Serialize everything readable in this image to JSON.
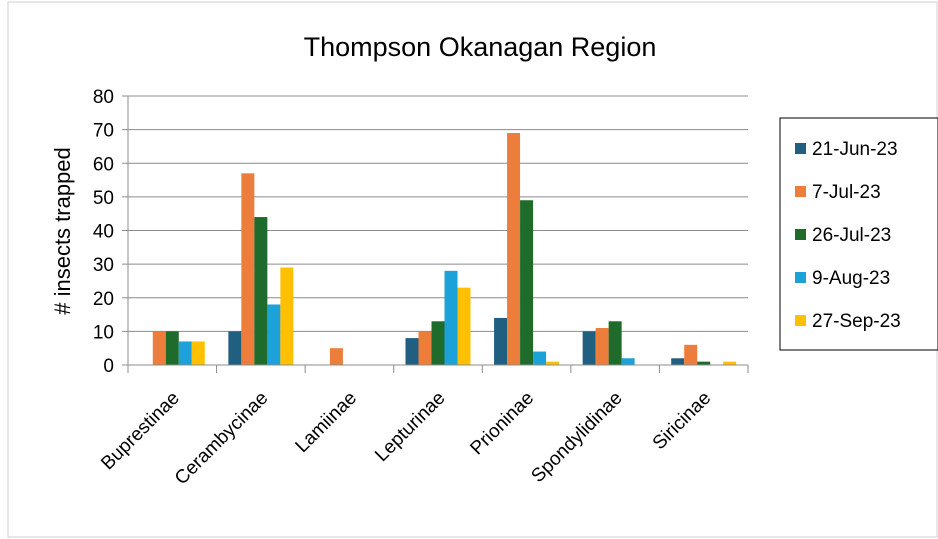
{
  "chart_data": {
    "type": "bar",
    "title": "Thompson Okanagan Region",
    "y_label": "# insects  trapped",
    "categories": [
      "Buprestinae",
      "Cerambycinae",
      "Lamiinae",
      "Lepturinae",
      "Prioninae",
      "Spondylidinae",
      "Siricinae"
    ],
    "series": [
      {
        "name": "21-Jun-23",
        "color": "#215f80",
        "values": [
          0,
          10,
          0,
          8,
          14,
          10,
          2
        ]
      },
      {
        "name": "7-Jul-23",
        "color": "#ed7d3a",
        "values": [
          10,
          57,
          5,
          10,
          69,
          11,
          6
        ]
      },
      {
        "name": "26-Jul-23",
        "color": "#1f6b2c",
        "values": [
          10,
          44,
          0,
          13,
          49,
          13,
          1
        ]
      },
      {
        "name": "9-Aug-23",
        "color": "#1ca1d9",
        "values": [
          7,
          18,
          0,
          28,
          4,
          2,
          0
        ]
      },
      {
        "name": "27-Sep-23",
        "color": "#ffc000",
        "values": [
          7,
          29,
          0,
          23,
          1,
          0,
          1
        ]
      }
    ],
    "ylim": [
      0,
      80
    ],
    "yticks": [
      0,
      10,
      20,
      30,
      40,
      50,
      60,
      70,
      80
    ],
    "grid": true,
    "legend": "right"
  }
}
